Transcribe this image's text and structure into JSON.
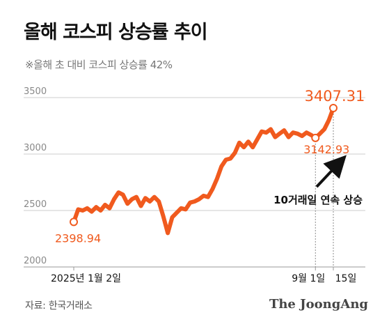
{
  "header": {
    "title": "올해 코스피 상승률 추이",
    "subtitle": "※올해 초 대비 코스피 상승률 42%"
  },
  "footer": {
    "source": "자료: 한국거래소",
    "brand": "The JoongAng"
  },
  "colors": {
    "series": "#f05a1e",
    "label": "#f05a1e",
    "grid": "#cccccc",
    "axis_text": "#888888",
    "text": "#111111"
  },
  "chart_data": {
    "type": "line",
    "ylim": [
      2000,
      3500
    ],
    "yticks": [
      2000,
      2500,
      3000,
      3500
    ],
    "x_tick_labels": [
      {
        "label": "2025년 1월 2일",
        "x": 0
      },
      {
        "label": "9월 1일",
        "x": 54
      },
      {
        "label": "15일",
        "x": 58
      }
    ],
    "series": [
      {
        "x": [
          0,
          1,
          2,
          3,
          4,
          5,
          6,
          7,
          8,
          9,
          10,
          11,
          12,
          13,
          14,
          15,
          16,
          17,
          18,
          19,
          20,
          21,
          22,
          23,
          24,
          25,
          26,
          27,
          28,
          29,
          30,
          31,
          32,
          33,
          34,
          35,
          36,
          37,
          38,
          39,
          40,
          41,
          42,
          43,
          44,
          45,
          46,
          47,
          48,
          49,
          50,
          51,
          52,
          53,
          54,
          55,
          56,
          57,
          58
        ],
        "values": [
          2398.94,
          2510,
          2500,
          2520,
          2490,
          2530,
          2500,
          2550,
          2520,
          2600,
          2660,
          2640,
          2560,
          2600,
          2620,
          2540,
          2610,
          2580,
          2620,
          2580,
          2450,
          2300,
          2440,
          2480,
          2520,
          2510,
          2570,
          2580,
          2600,
          2630,
          2620,
          2690,
          2780,
          2890,
          2950,
          2960,
          3010,
          3100,
          3060,
          3110,
          3060,
          3130,
          3200,
          3190,
          3220,
          3150,
          3180,
          3210,
          3150,
          3190,
          3180,
          3160,
          3190,
          3170,
          3142.93,
          3180,
          3220,
          3300,
          3407.31
        ]
      }
    ],
    "point_labels": [
      {
        "x": 0,
        "value": 2398.94,
        "text": "2398.94"
      },
      {
        "x": 54,
        "value": 3142.93,
        "text": "3142.93"
      },
      {
        "x": 58,
        "value": 3407.31,
        "text": "3407.31"
      }
    ],
    "annotation": "10거래일 연속 상승"
  }
}
